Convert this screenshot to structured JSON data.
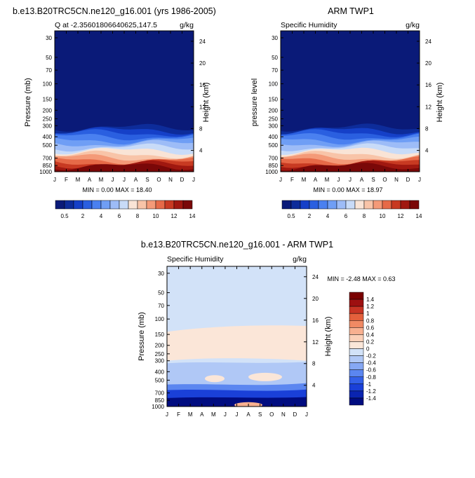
{
  "chart_data": [
    {
      "type": "heatmap",
      "title": "b.e13.B20TRC5CN.ne120_g16.001 (yrs 1986-2005)",
      "subtitle_left": "Q at -2.35601806640625,147.5",
      "subtitle_right": "g/kg",
      "ylabel": "Pressure (mb)",
      "y2label": "Height (km)",
      "x_ticks": [
        "J",
        "F",
        "M",
        "A",
        "M",
        "J",
        "J",
        "A",
        "S",
        "O",
        "N",
        "D",
        "J"
      ],
      "y_ticks": [
        30,
        50,
        70,
        100,
        150,
        200,
        250,
        300,
        400,
        500,
        700,
        850,
        1000
      ],
      "y2_ticks": [
        24,
        20,
        16,
        12,
        8,
        4
      ],
      "ylim": [
        1000,
        25
      ],
      "stats": "MIN =   0.00 MAX =  18.40",
      "colorbar_labels": [
        "0.5",
        "2",
        "4",
        "6",
        "8",
        "10",
        "12",
        "14"
      ],
      "profile": [
        {
          "p": 1000,
          "q": 16
        },
        {
          "p": 850,
          "q": 12
        },
        {
          "p": 700,
          "q": 8
        },
        {
          "p": 600,
          "q": 6
        },
        {
          "p": 500,
          "q": 4
        },
        {
          "p": 400,
          "q": 2.5
        },
        {
          "p": 350,
          "q": 1.5
        },
        {
          "p": 300,
          "q": 0.8
        },
        {
          "p": 275,
          "q": 0.3
        },
        {
          "p": 25,
          "q": 0.2
        }
      ]
    },
    {
      "type": "heatmap",
      "title": "ARM TWP1",
      "subtitle_left": "Specific Humidity",
      "subtitle_right": "g/kg",
      "ylabel": "pressure level",
      "y2label": "Height (km)",
      "x_ticks": [
        "J",
        "F",
        "M",
        "A",
        "M",
        "J",
        "J",
        "A",
        "S",
        "O",
        "N",
        "D",
        "J"
      ],
      "y_ticks": [
        30,
        50,
        70,
        100,
        150,
        200,
        250,
        300,
        400,
        500,
        700,
        850,
        1000
      ],
      "y2_ticks": [
        24,
        20,
        16,
        12,
        8,
        4
      ],
      "ylim": [
        1000,
        25
      ],
      "stats": "MIN =   0.00 MAX =  18.97",
      "colorbar_labels": [
        "0.5",
        "2",
        "4",
        "6",
        "8",
        "10",
        "12",
        "14"
      ],
      "profile": [
        {
          "p": 1000,
          "q": 16.5
        },
        {
          "p": 850,
          "q": 12.5
        },
        {
          "p": 700,
          "q": 8.5
        },
        {
          "p": 600,
          "q": 6.2
        },
        {
          "p": 500,
          "q": 4.2
        },
        {
          "p": 400,
          "q": 2.6
        },
        {
          "p": 350,
          "q": 1.6
        },
        {
          "p": 300,
          "q": 0.9
        },
        {
          "p": 275,
          "q": 0.3
        },
        {
          "p": 25,
          "q": 0.2
        }
      ]
    },
    {
      "type": "heatmap",
      "title": "b.e13.B20TRC5CN.ne120_g16.001 - ARM TWP1",
      "subtitle_left": "Specific Humidity",
      "subtitle_right": "g/kg",
      "ylabel": "Pressure (mb)",
      "y2label": "Height (km)",
      "x_ticks": [
        "J",
        "F",
        "M",
        "A",
        "M",
        "J",
        "J",
        "A",
        "S",
        "O",
        "N",
        "D",
        "J"
      ],
      "y_ticks": [
        30,
        50,
        70,
        100,
        150,
        200,
        250,
        300,
        400,
        500,
        700,
        850,
        1000
      ],
      "y2_ticks": [
        24,
        20,
        16,
        12,
        8,
        4
      ],
      "ylim": [
        1000,
        25
      ],
      "stats": "MIN =  -2.48 MAX =   0.63",
      "colorbar_labels": [
        "1.4",
        "1.2",
        "1",
        "0.8",
        "0.6",
        "0.4",
        "0.2",
        "0",
        "-0.2",
        "-0.4",
        "-0.6",
        "-0.8",
        "-1",
        "-1.2",
        "-1.4"
      ]
    }
  ],
  "colors": {
    "q_scale": [
      "#0a1a78",
      "#0d2c9a",
      "#1540c8",
      "#2a5fe0",
      "#4a80f0",
      "#6f9ef5",
      "#9dbcf7",
      "#c8dbf8",
      "#f9e4d6",
      "#f8c4a8",
      "#f49a78",
      "#e66a48",
      "#c83a22",
      "#a01810",
      "#7a0808"
    ],
    "diff_scale": [
      "#000c80",
      "#0a24b0",
      "#1a40d8",
      "#3360e8",
      "#5b86f0",
      "#86a8f4",
      "#b0c8f6",
      "#d2e2f8",
      "#fbe6d8",
      "#fbd0b8",
      "#f8b090",
      "#f08a64",
      "#e4603c",
      "#c83424",
      "#9e1010",
      "#7a0000"
    ]
  }
}
